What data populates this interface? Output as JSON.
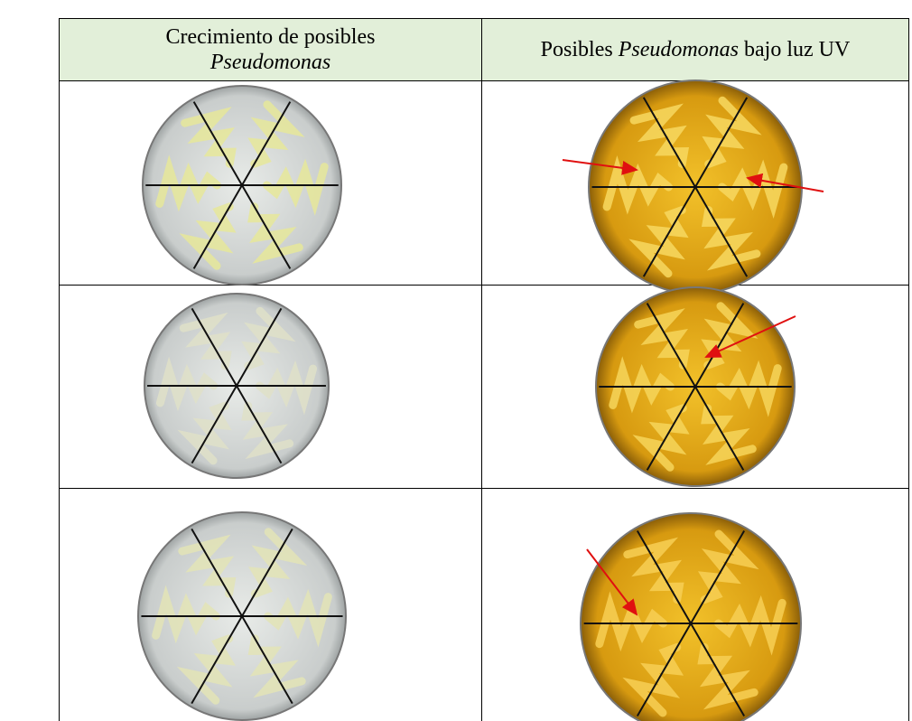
{
  "table": {
    "header": [
      {
        "text": "Crecimiento de posibles",
        "italic": "Pseudomonas"
      },
      {
        "before": "Posibles",
        "italic": "Pseudomonas",
        "after": "bajo luz UV"
      }
    ]
  }
}
